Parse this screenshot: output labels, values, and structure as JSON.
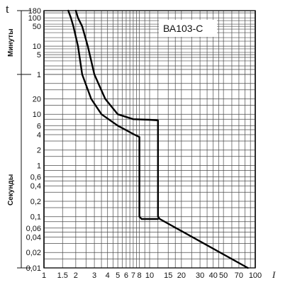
{
  "chart_data": {
    "type": "line",
    "title": "ВА103-С",
    "ylabel": "t",
    "xlabel": "I",
    "y_group_labels": [
      "Минуты",
      "Секунды"
    ],
    "x_ticks": [
      "1",
      "1.5",
      "2",
      "3",
      "4",
      "5",
      "6",
      "7",
      "8",
      "10",
      "15",
      "20",
      "30",
      "40",
      "50",
      "70",
      "100"
    ],
    "y_ticks_minutes": [
      "180",
      "100",
      "50",
      "10",
      "5",
      "1"
    ],
    "y_ticks_seconds": [
      "20",
      "10",
      "6",
      "4",
      "2",
      "1",
      "0,6",
      "0,4",
      "0,2",
      "0,1",
      "0,06",
      "0,04",
      "0,02",
      "0,01"
    ],
    "series": [
      {
        "points": [
          {
            "x": 1.7,
            "y": 180
          },
          {
            "x": 1.8,
            "y": 100
          },
          {
            "x": 1.9,
            "y": 50
          },
          {
            "x": 2.1,
            "y": 10
          },
          {
            "x": 2.3,
            "y": 1
          },
          {
            "x": 2.8,
            "y": 20
          },
          {
            "x": 3.5,
            "y": 10
          },
          {
            "x": 5.0,
            "y": 6
          },
          {
            "x": 7.2,
            "y": 4
          },
          {
            "x": 8.0,
            "y": 3.6
          },
          {
            "x": 8.0,
            "y": 0.1
          },
          {
            "x": 8.4,
            "y": 0.09
          },
          {
            "x": 12.0,
            "y": 0.09
          }
        ]
      },
      {
        "points": [
          {
            "x": 2.0,
            "y": 180
          },
          {
            "x": 2.1,
            "y": 100
          },
          {
            "x": 2.3,
            "y": 50
          },
          {
            "x": 2.6,
            "y": 10
          },
          {
            "x": 3.0,
            "y": 1
          },
          {
            "x": 3.8,
            "y": 20
          },
          {
            "x": 5.0,
            "y": 10
          },
          {
            "x": 7.0,
            "y": 8
          },
          {
            "x": 10.0,
            "y": 7.8
          },
          {
            "x": 12.0,
            "y": 7.6
          },
          {
            "x": 12.0,
            "y": 0.1
          },
          {
            "x": 12.5,
            "y": 0.09
          },
          {
            "x": 85,
            "y": 0.01
          }
        ]
      }
    ]
  }
}
